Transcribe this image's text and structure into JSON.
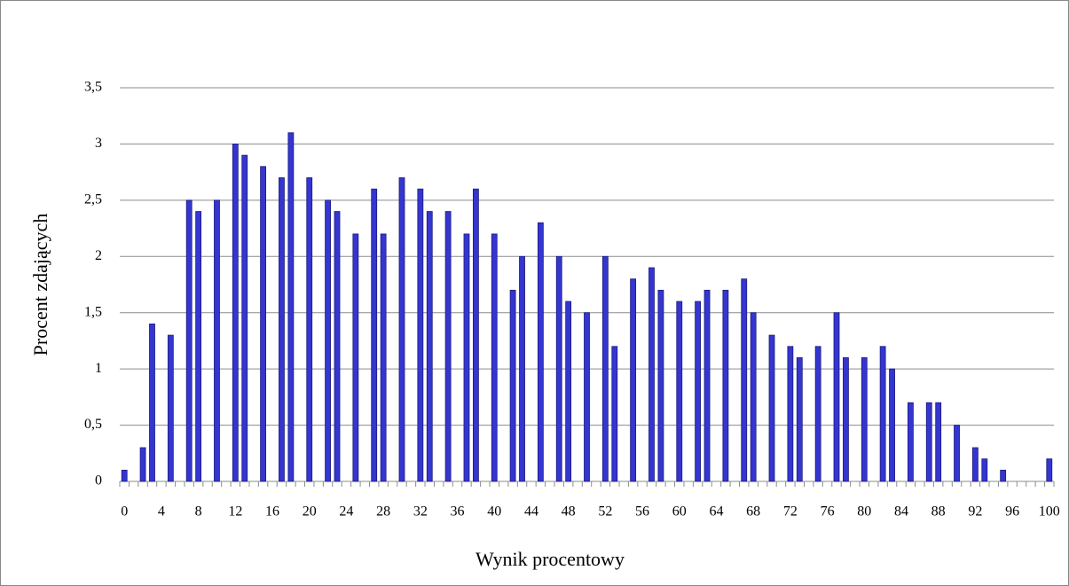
{
  "chart_data": {
    "type": "bar",
    "x_label": "Wynik procentowy",
    "y_label": "Procent zdających",
    "categories": [
      "0",
      null,
      null,
      null,
      "4",
      null,
      null,
      null,
      "8",
      null,
      null,
      null,
      "12",
      null,
      null,
      null,
      "16",
      null,
      null,
      null,
      "20",
      null,
      null,
      null,
      "24",
      null,
      null,
      null,
      "28",
      null,
      null,
      null,
      "32",
      null,
      null,
      null,
      "36",
      null,
      null,
      null,
      "40",
      null,
      null,
      null,
      "44",
      null,
      null,
      null,
      "48",
      null,
      null,
      null,
      "52",
      null,
      null,
      null,
      "56",
      null,
      null,
      null,
      "60",
      null,
      null,
      null,
      "64",
      null,
      null,
      null,
      "68",
      null,
      null,
      null,
      "72",
      null,
      null,
      null,
      "76",
      null,
      null,
      null,
      "80",
      null,
      null,
      null,
      "84",
      null,
      null,
      null,
      "88",
      null,
      null,
      null,
      "92",
      null,
      null,
      null,
      "96",
      null,
      null,
      null,
      "100"
    ],
    "values": [
      0.1,
      null,
      0.3,
      1.4,
      null,
      1.3,
      null,
      2.5,
      2.4,
      null,
      2.5,
      null,
      3,
      2.9,
      null,
      2.8,
      null,
      2.7,
      3.1,
      null,
      2.7,
      null,
      2.5,
      2.4,
      null,
      2.2,
      null,
      2.6,
      2.2,
      null,
      2.7,
      null,
      2.6,
      2.4,
      null,
      2.4,
      null,
      2.2,
      2.6,
      null,
      2.2,
      null,
      1.7,
      2,
      null,
      2.3,
      null,
      2,
      1.6,
      null,
      1.5,
      null,
      2,
      1.2,
      null,
      1.8,
      null,
      1.9,
      1.7,
      null,
      1.6,
      null,
      1.6,
      1.7,
      null,
      1.7,
      null,
      1.8,
      1.5,
      null,
      1.3,
      null,
      1.2,
      1.1,
      null,
      1.2,
      null,
      1.5,
      1.1,
      null,
      1.1,
      null,
      1.2,
      1,
      null,
      0.7,
      null,
      0.7,
      0.7,
      null,
      0.5,
      null,
      0.3,
      0.2,
      null,
      0.1,
      null,
      null,
      null,
      null,
      0.2
    ],
    "color": "#3535d0",
    "ylim": [
      0,
      3.5
    ],
    "yticks": [
      0,
      {
        "value": 0.5,
        "label": "0,5"
      },
      1,
      {
        "value": 1.5,
        "label": "1,5"
      },
      2,
      {
        "value": 2.5,
        "label": "2,5"
      },
      3,
      {
        "value": 3.5,
        "label": "3,5"
      }
    ],
    "grid": true
  }
}
